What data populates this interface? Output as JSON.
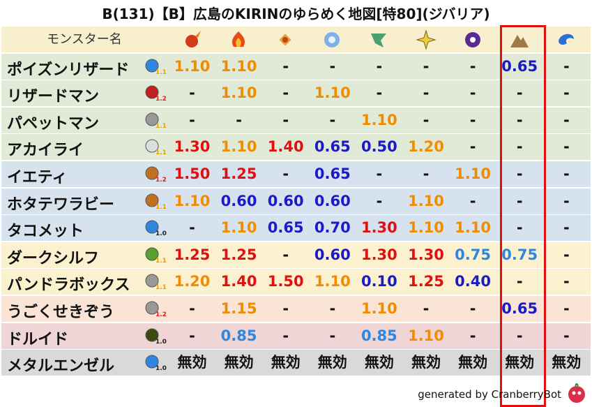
{
  "title": "B(131)【B】広島のKIRINのゆらめく地図[特80](ジバリア)",
  "header": {
    "name_label": "モンスター名",
    "background": "#f8efcf"
  },
  "rows": [
    {
      "name": "ポイズンリザード",
      "level": "1.1",
      "level_color": "#e8a000",
      "background": "#e0ead6",
      "cells": [
        "1.10",
        "1.10",
        "-",
        "-",
        "-",
        "-",
        "-",
        "0.65",
        "-"
      ],
      "colors": [
        "#f08c00",
        "#f08c00",
        "#111",
        "#111",
        "#111",
        "#111",
        "#111",
        "#1a1ac8",
        "#111"
      ]
    },
    {
      "name": "リザードマン",
      "level": "1.2",
      "level_color": "#e02020",
      "background": "#e0ead6",
      "cells": [
        "-",
        "1.10",
        "-",
        "1.10",
        "-",
        "-",
        "-",
        "-",
        "-"
      ],
      "colors": [
        "#111",
        "#f08c00",
        "#111",
        "#f08c00",
        "#111",
        "#111",
        "#111",
        "#111",
        "#111"
      ]
    },
    {
      "name": "パペットマン",
      "level": "1.1",
      "level_color": "#e8a000",
      "background": "#e0ead6",
      "cells": [
        "-",
        "-",
        "-",
        "-",
        "1.10",
        "-",
        "-",
        "-",
        "-"
      ],
      "colors": [
        "#111",
        "#111",
        "#111",
        "#111",
        "#f08c00",
        "#111",
        "#111",
        "#111",
        "#111"
      ]
    },
    {
      "name": "アカイライ",
      "level": "1.1",
      "level_color": "#e8a000",
      "background": "#e0ead6",
      "cells": [
        "1.30",
        "1.10",
        "1.40",
        "0.65",
        "0.50",
        "1.20",
        "-",
        "-",
        "-"
      ],
      "colors": [
        "#e01010",
        "#f08c00",
        "#e01010",
        "#1a1ac8",
        "#1a1ac8",
        "#f08c00",
        "#111",
        "#111",
        "#111"
      ]
    },
    {
      "name": "イエティ",
      "level": "1.2",
      "level_color": "#e02020",
      "background": "#d7e2ef",
      "cells": [
        "1.50",
        "1.25",
        "-",
        "0.65",
        "-",
        "-",
        "1.10",
        "-",
        "-"
      ],
      "colors": [
        "#e01010",
        "#e01010",
        "#111",
        "#1a1ac8",
        "#111",
        "#111",
        "#f08c00",
        "#111",
        "#111"
      ]
    },
    {
      "name": "ホタテワラビー",
      "level": "1.1",
      "level_color": "#e8a000",
      "background": "#d7e2ef",
      "cells": [
        "1.10",
        "0.60",
        "0.60",
        "0.60",
        "-",
        "1.10",
        "-",
        "-",
        "-"
      ],
      "colors": [
        "#f08c00",
        "#1a1ac8",
        "#1a1ac8",
        "#1a1ac8",
        "#111",
        "#f08c00",
        "#111",
        "#111",
        "#111"
      ]
    },
    {
      "name": "タコメット",
      "level": "1.0",
      "level_color": "#222",
      "background": "#d7e2ef",
      "cells": [
        "-",
        "1.10",
        "0.65",
        "0.70",
        "1.30",
        "1.10",
        "1.10",
        "-",
        "-"
      ],
      "colors": [
        "#111",
        "#f08c00",
        "#1a1ac8",
        "#1a1ac8",
        "#e01010",
        "#f08c00",
        "#f08c00",
        "#111",
        "#111"
      ]
    },
    {
      "name": "ダークシルフ",
      "level": "1.1",
      "level_color": "#e8a000",
      "background": "#fbf1cf",
      "cells": [
        "1.25",
        "1.25",
        "-",
        "0.60",
        "1.30",
        "1.30",
        "0.75",
        "0.75",
        "-"
      ],
      "colors": [
        "#e01010",
        "#e01010",
        "#111",
        "#1a1ac8",
        "#e01010",
        "#e01010",
        "#2f86e0",
        "#2f86e0",
        "#111"
      ]
    },
    {
      "name": "パンドラボックス",
      "level": "1.1",
      "level_color": "#e8a000",
      "background": "#fbf1cf",
      "cells": [
        "1.20",
        "1.40",
        "1.50",
        "1.10",
        "0.10",
        "1.25",
        "0.40",
        "-",
        "-"
      ],
      "colors": [
        "#f08c00",
        "#e01010",
        "#e01010",
        "#f08c00",
        "#1a1ac8",
        "#e01010",
        "#1a1ac8",
        "#111",
        "#111"
      ]
    },
    {
      "name": "うごくせきぞう",
      "level": "1.2",
      "level_color": "#e02020",
      "background": "#f9e4d5",
      "cells": [
        "-",
        "1.15",
        "-",
        "-",
        "1.10",
        "-",
        "-",
        "0.65",
        "-"
      ],
      "colors": [
        "#111",
        "#f08c00",
        "#111",
        "#111",
        "#f08c00",
        "#111",
        "#111",
        "#1a1ac8",
        "#111"
      ]
    },
    {
      "name": "ドルイド",
      "level": "1.0",
      "level_color": "#222",
      "background": "#efd5d5",
      "cells": [
        "-",
        "0.85",
        "-",
        "-",
        "0.85",
        "1.10",
        "-",
        "-",
        "-"
      ],
      "colors": [
        "#111",
        "#2f86e0",
        "#111",
        "#111",
        "#2f86e0",
        "#f08c00",
        "#111",
        "#111",
        "#111"
      ]
    },
    {
      "name": "メタルエンゼル",
      "level": "1.0",
      "level_color": "#222",
      "background": "#d9d9d9",
      "cells": [
        "無効",
        "無効",
        "無効",
        "無効",
        "無効",
        "無効",
        "無効",
        "無効",
        "無効"
      ],
      "colors": [
        "#111",
        "#111",
        "#111",
        "#111",
        "#111",
        "#111",
        "#111",
        "#111",
        "#111"
      ]
    }
  ],
  "footer": "generated by CranberryBot"
}
